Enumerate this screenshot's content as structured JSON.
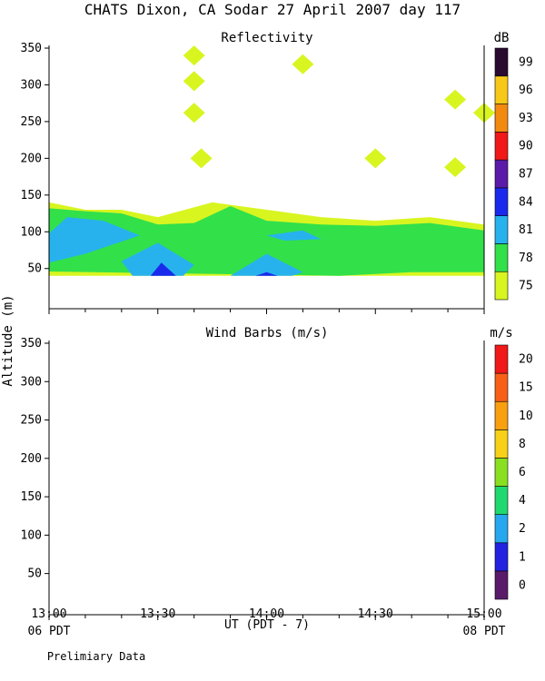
{
  "header": {
    "title": "CHATS Dixon, CA  Sodar  27 April 2007  day 117",
    "footer_note": "Prelimiary Data"
  },
  "axes": {
    "ylabel": "Altitude (m)",
    "xlabel": "UT  (PDT - 7)",
    "y_ticks": [
      50,
      100,
      150,
      200,
      250,
      300,
      350
    ],
    "ylim": [
      20,
      350
    ],
    "x_ticks": [
      "13:00",
      "13:30",
      "14:00",
      "14:30",
      "15:00"
    ],
    "local_start": "06 PDT",
    "local_end": "08 PDT"
  },
  "chart_data": [
    {
      "type": "heatmap",
      "title": "Reflectivity",
      "colorbar_unit": "dB",
      "colorbar_ticks": [
        "75",
        "78",
        "81",
        "84",
        "87",
        "90",
        "93",
        "96",
        "99"
      ],
      "colorbar_colors": [
        "#d8f520",
        "#32e04a",
        "#27b2ee",
        "#1a2aec",
        "#5b1aa8",
        "#f01818",
        "#f28a10",
        "#f8c818",
        "#2a0a30"
      ],
      "x_range": [
        "13:00",
        "15:00"
      ],
      "ylim": [
        20,
        350
      ],
      "regions": [
        {
          "level": "75",
          "points": [
            [
              "13:00",
              140
            ],
            [
              "13:10",
              130
            ],
            [
              "13:20",
              130
            ],
            [
              "13:30",
              120
            ],
            [
              "13:45",
              140
            ],
            [
              "14:00",
              130
            ],
            [
              "14:15",
              120
            ],
            [
              "14:30",
              115
            ],
            [
              "14:45",
              120
            ],
            [
              "15:00",
              110
            ],
            [
              "15:00",
              40
            ],
            [
              "13:00",
              40
            ]
          ]
        },
        {
          "level": "78",
          "points": [
            [
              "13:00",
              132
            ],
            [
              "13:10",
              128
            ],
            [
              "13:20",
              125
            ],
            [
              "13:30",
              110
            ],
            [
              "13:40",
              112
            ],
            [
              "13:50",
              135
            ],
            [
              "14:00",
              115
            ],
            [
              "14:15",
              110
            ],
            [
              "14:30",
              108
            ],
            [
              "14:45",
              112
            ],
            [
              "15:00",
              102
            ],
            [
              "15:00",
              45
            ],
            [
              "14:40",
              45
            ],
            [
              "14:20",
              40
            ],
            [
              "13:00",
              46
            ]
          ]
        },
        {
          "level": "81",
          "points": [
            [
              "13:00",
              98
            ],
            [
              "13:05",
              120
            ],
            [
              "13:15",
              115
            ],
            [
              "13:25",
              95
            ],
            [
              "13:10",
              70
            ],
            [
              "13:00",
              58
            ]
          ]
        },
        {
          "level": "81",
          "points": [
            [
              "13:20",
              60
            ],
            [
              "13:30",
              85
            ],
            [
              "13:40",
              55
            ],
            [
              "13:37",
              40
            ],
            [
              "13:23",
              40
            ]
          ]
        },
        {
          "level": "81",
          "points": [
            [
              "13:50",
              40
            ],
            [
              "14:00",
              70
            ],
            [
              "14:10",
              45
            ],
            [
              "14:07",
              40
            ]
          ]
        },
        {
          "level": "81",
          "points": [
            [
              "14:00",
              95
            ],
            [
              "14:10",
              102
            ],
            [
              "14:15",
              90
            ],
            [
              "14:05",
              88
            ]
          ]
        },
        {
          "level": "84",
          "points": [
            [
              "13:28",
              40
            ],
            [
              "13:31",
              58
            ],
            [
              "13:35",
              40
            ]
          ]
        },
        {
          "level": "84",
          "points": [
            [
              "13:57",
              40
            ],
            [
              "14:00",
              45
            ],
            [
              "14:03",
              40
            ]
          ]
        }
      ],
      "blobs_75": [
        {
          "x": "13:40",
          "y": 340
        },
        {
          "x": "13:40",
          "y": 305
        },
        {
          "x": "13:40",
          "y": 262
        },
        {
          "x": "13:42",
          "y": 200
        },
        {
          "x": "14:10",
          "y": 328
        },
        {
          "x": "14:30",
          "y": 200
        },
        {
          "x": "14:52",
          "y": 188
        },
        {
          "x": "14:52",
          "y": 280
        },
        {
          "x": "15:00",
          "y": 262
        }
      ]
    },
    {
      "type": "scatter",
      "title": "Wind Barbs (m/s)",
      "colorbar_unit": "m/s",
      "colorbar_ticks": [
        "0",
        "1",
        "2",
        "4",
        "6",
        "8",
        "10",
        "15",
        "20"
      ],
      "colorbar_colors": [
        "#5a1a6a",
        "#2222e0",
        "#27a8ee",
        "#20d870",
        "#88e020",
        "#f8d018",
        "#f8a010",
        "#f86018",
        "#f01818"
      ],
      "x_range": [
        "13:00",
        "15:00"
      ],
      "ylim": [
        20,
        350
      ],
      "barbs": []
    }
  ]
}
